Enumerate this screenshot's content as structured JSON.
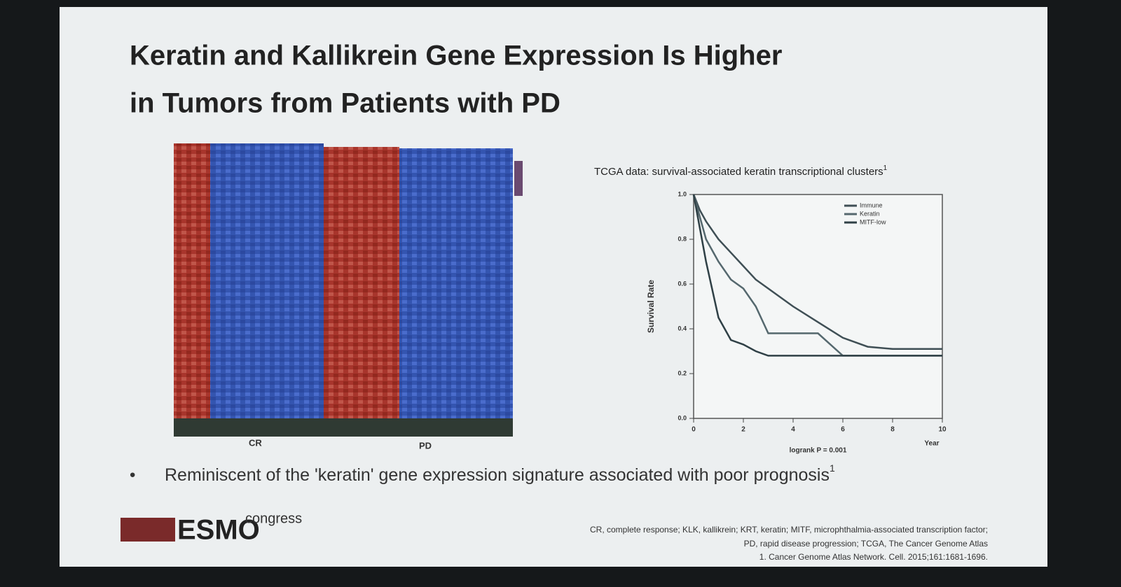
{
  "slide": {
    "title_line1": "Keratin and Kallikrein Gene Expression Is Higher",
    "title_line2": "in Tumors from Patients with PD",
    "bullet": "Reminiscent of the 'keratin' gene expression signature associated with poor prognosis",
    "bullet_ref": "1",
    "logo_name": "ESMO",
    "logo_suffix": "congress",
    "footnotes": [
      "CR, complete response; KLK, kallikrein; KRT, keratin; MITF, microphthalmia-associated transcription factor;",
      "PD, rapid disease progression; TCGA, The Cancer Genome Atlas",
      "1. Cancer Genome Atlas Network. Cell. 2015;161:1681-1696."
    ]
  },
  "heatmap": {
    "groups": [
      "CR",
      "PD"
    ]
  },
  "chart_data": {
    "type": "line",
    "title": "TCGA data: survival-associated keratin transcriptional clusters",
    "title_ref": "1",
    "ylabel": "Survival Rate",
    "xlabel": "Year",
    "annotation": "logrank P = 0.001",
    "x": [
      0,
      0.25,
      0.5,
      1,
      1.5,
      2,
      2.5,
      3,
      4,
      5,
      6,
      7,
      8,
      10
    ],
    "series": [
      {
        "name": "Immune",
        "color": "#3f4f55",
        "values": [
          1,
          0.93,
          0.88,
          0.8,
          0.74,
          0.68,
          0.62,
          0.58,
          0.5,
          0.43,
          0.36,
          0.32,
          0.31,
          0.31
        ]
      },
      {
        "name": "Keratin",
        "color": "#55686e",
        "values": [
          1,
          0.9,
          0.8,
          0.7,
          0.62,
          0.58,
          0.5,
          0.38,
          0.38,
          0.38,
          0.28,
          0.28,
          0.28,
          0.28
        ]
      },
      {
        "name": "MITF-low",
        "color": "#2f4046",
        "values": [
          1,
          0.85,
          0.7,
          0.45,
          0.35,
          0.33,
          0.3,
          0.28,
          0.28,
          0.28,
          0.28,
          0.28,
          0.28,
          0.28
        ]
      }
    ],
    "xlim": [
      0,
      10
    ],
    "ylim": [
      0,
      1
    ],
    "xticks": [
      0,
      2,
      4,
      6,
      8,
      10
    ],
    "yticks": [
      {
        "value": 0,
        "label": "0.0"
      },
      {
        "value": 0.2,
        "label": "0.2"
      },
      {
        "value": 0.4,
        "label": "0.4"
      },
      {
        "value": 0.6,
        "label": "0.6"
      },
      {
        "value": 0.8,
        "label": "0.8"
      },
      {
        "value": 1,
        "label": "1.0"
      }
    ],
    "grid": false,
    "legend": "top-right"
  }
}
